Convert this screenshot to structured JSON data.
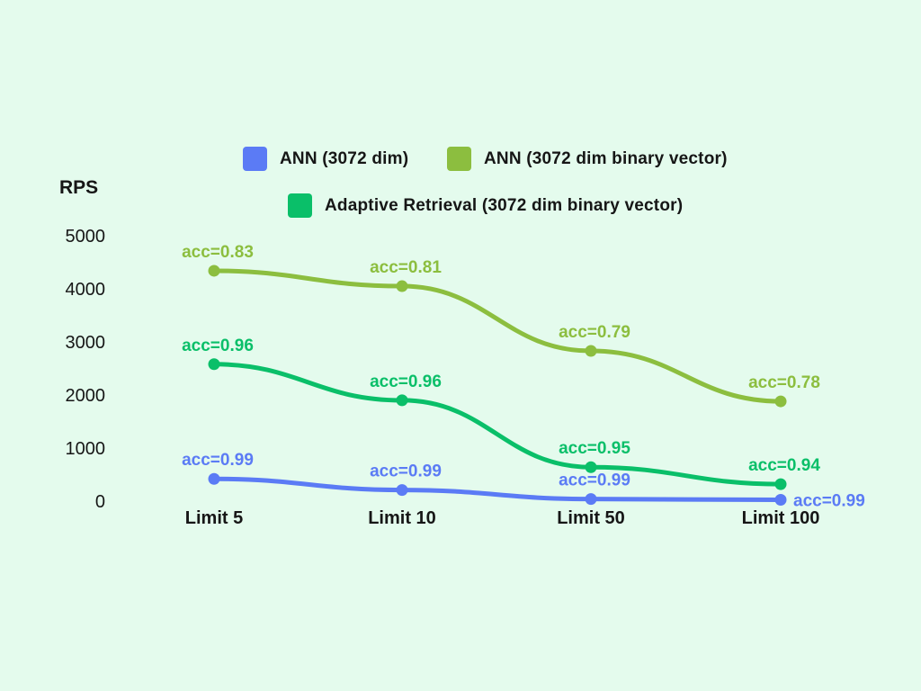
{
  "background_color": "#e4fbed",
  "text_color": "#161616",
  "legend": {
    "items": [
      {
        "label": "ANN (3072 dim)",
        "color": "#5b7bf5"
      },
      {
        "label": "ANN (3072 dim binary vector)",
        "color": "#8cbe3f"
      },
      {
        "label": "Adaptive Retrieval (3072 dim binary vector)",
        "color": "#0abf69"
      }
    ]
  },
  "chart_data": {
    "type": "line",
    "title": "",
    "xlabel": "",
    "ylabel": "RPS",
    "categories": [
      "Limit 5",
      "Limit 10",
      "Limit 50",
      "Limit 100"
    ],
    "y_ticks": [
      5000,
      4000,
      3000,
      2000,
      1000,
      0
    ],
    "ylim": [
      0,
      5000
    ],
    "grid": false,
    "legend_position": "top",
    "series": [
      {
        "name": "ANN (3072 dim)",
        "color": "#5b7bf5",
        "values": [
          420,
          210,
          40,
          25
        ],
        "point_labels": [
          "acc=0.99",
          "acc=0.99",
          "acc=0.99",
          "acc=0.99"
        ],
        "label_positions": [
          "above",
          "above",
          "above",
          "right"
        ]
      },
      {
        "name": "ANN (3072 dim binary vector)",
        "color": "#8cbe3f",
        "values": [
          4340,
          4050,
          2830,
          1880
        ],
        "point_labels": [
          "acc=0.83",
          "acc=0.81",
          "acc=0.79",
          "acc=0.78"
        ],
        "label_positions": [
          "above",
          "above",
          "above",
          "above"
        ]
      },
      {
        "name": "Adaptive Retrieval (3072 dim binary vector)",
        "color": "#0abf69",
        "values": [
          2580,
          1900,
          640,
          320
        ],
        "point_labels": [
          "acc=0.96",
          "acc=0.96",
          "acc=0.95",
          "acc=0.94"
        ],
        "label_positions": [
          "above",
          "above",
          "above",
          "above"
        ]
      }
    ]
  }
}
